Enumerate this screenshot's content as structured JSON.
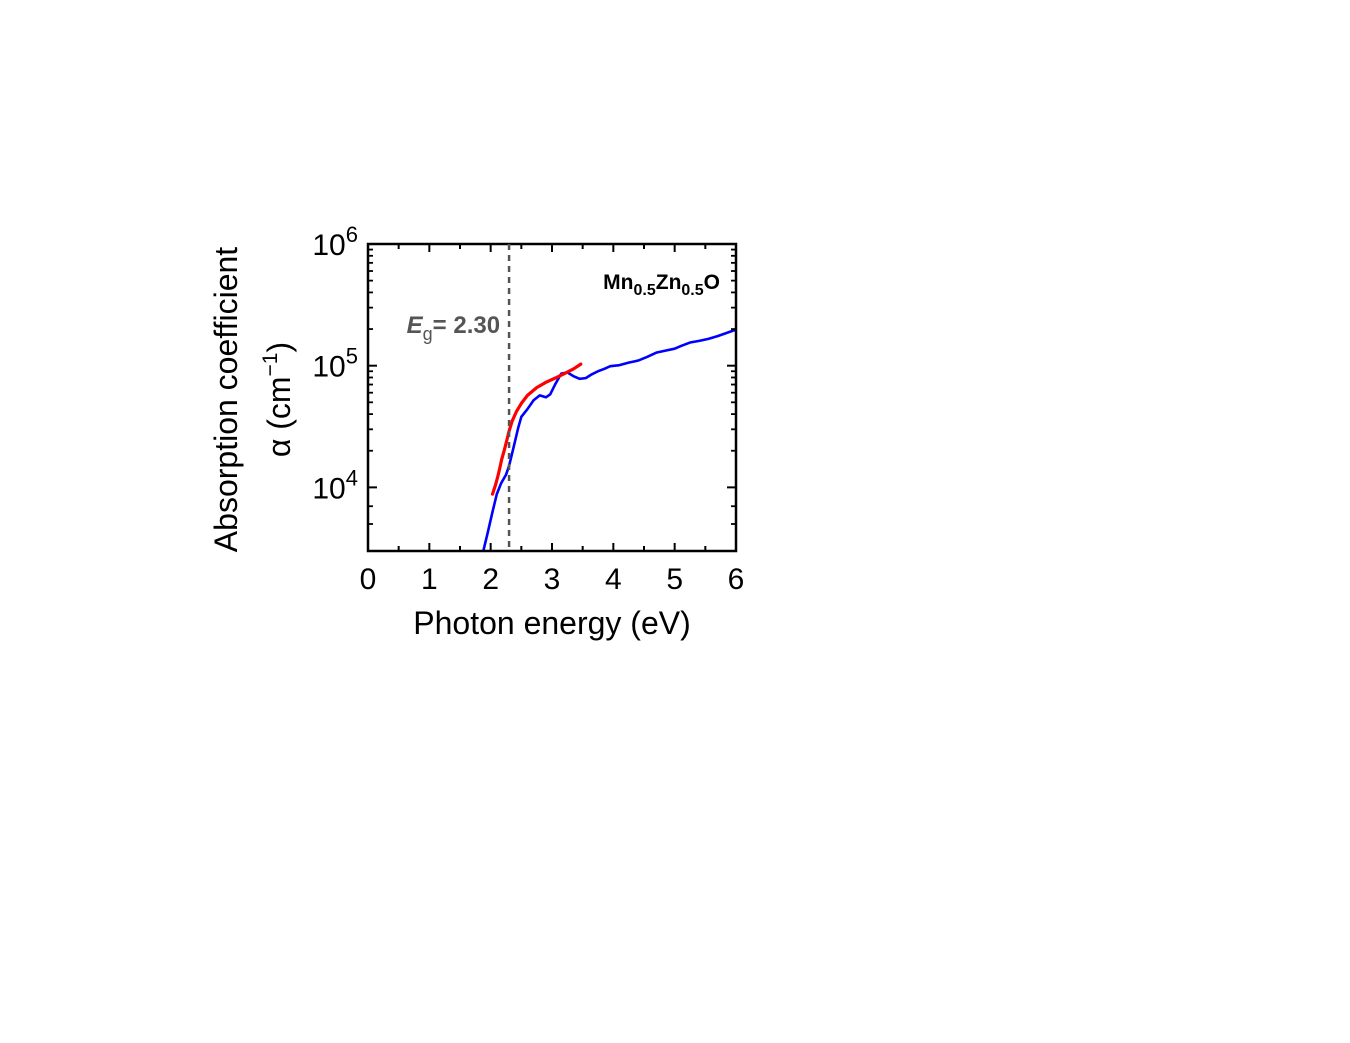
{
  "chart_data": {
    "type": "line",
    "title": "",
    "xlabel": "Photon energy (eV)",
    "ylabel_line1": "Absorption coefficient",
    "ylabel_line2": {
      "base": "α (cm",
      "exp": "−1",
      "close": ")"
    },
    "xlim": [
      0,
      6
    ],
    "ylim": [
      3000,
      1000000
    ],
    "yscale": "log",
    "x_ticks": [
      0,
      1,
      2,
      3,
      4,
      5,
      6
    ],
    "x_tick_labels": [
      "0",
      "1",
      "2",
      "3",
      "4",
      "5",
      "6"
    ],
    "y_ticks": [
      {
        "value": 10000,
        "base": "10",
        "exp": "4"
      },
      {
        "value": 100000,
        "base": "10",
        "exp": "5"
      },
      {
        "value": 1000000,
        "base": "10",
        "exp": "6"
      }
    ],
    "grid": false,
    "sample_label": {
      "parts": [
        {
          "text": "Mn",
          "sub": false
        },
        {
          "text": "0.5",
          "sub": true
        },
        {
          "text": "Zn",
          "sub": false
        },
        {
          "text": "0.5",
          "sub": true
        },
        {
          "text": "O",
          "sub": false
        }
      ]
    },
    "bandgap": {
      "x": 2.3,
      "label_symbol": "E",
      "label_sub": "g",
      "label_value": "= 2.30",
      "color": "#555555"
    },
    "series": [
      {
        "color": "#0000ff",
        "x": [
          1.88,
          1.95,
          2.03,
          2.1,
          2.17,
          2.25,
          2.3,
          2.38,
          2.45,
          2.5,
          2.6,
          2.7,
          2.8,
          2.9,
          2.97,
          3.05,
          3.15,
          3.25,
          3.35,
          3.45,
          3.55,
          3.65,
          3.75,
          3.85,
          3.95,
          4.1,
          4.25,
          4.4,
          4.55,
          4.7,
          4.85,
          5.0,
          5.1,
          5.25,
          5.4,
          5.55,
          5.7,
          5.85,
          6.0
        ],
        "y": [
          3000,
          4200,
          6300,
          8800,
          10800,
          12700,
          15000,
          22000,
          31000,
          38000,
          44000,
          52000,
          57000,
          55000,
          58000,
          70000,
          86000,
          88000,
          82000,
          78000,
          79000,
          85000,
          90000,
          94000,
          99000,
          101000,
          106000,
          110000,
          118000,
          128000,
          133000,
          138000,
          145000,
          155000,
          160000,
          166000,
          175000,
          186000,
          198000
        ]
      },
      {
        "color": "#ff0000",
        "x": [
          2.03,
          2.08,
          2.12,
          2.15,
          2.18,
          2.22,
          2.26,
          2.3,
          2.35,
          2.42,
          2.5,
          2.6,
          2.75,
          2.9,
          3.05,
          3.2,
          3.35,
          3.47
        ],
        "y": [
          8800,
          10500,
          12500,
          14500,
          17000,
          20000,
          24000,
          29000,
          35000,
          42000,
          49000,
          57000,
          66000,
          73000,
          79000,
          86000,
          94000,
          103000
        ]
      }
    ]
  }
}
